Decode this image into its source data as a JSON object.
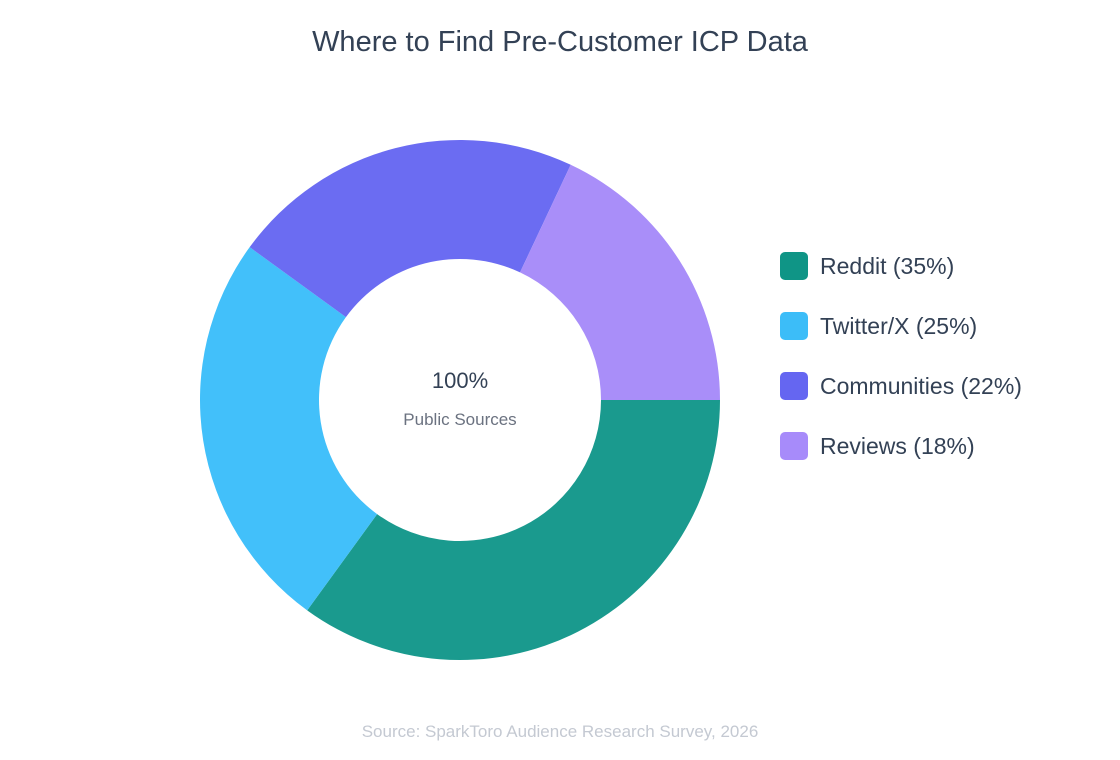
{
  "chart_data": {
    "type": "pie",
    "title": "Where to Find Pre-Customer ICP Data",
    "categories": [
      "Reddit",
      "Twitter/X",
      "Communities",
      "Reviews"
    ],
    "values": [
      35,
      25,
      22,
      18
    ],
    "unit": "%",
    "colors": [
      "#1a9a8e",
      "#42c0fa",
      "#6b6cf2",
      "#a98ef9"
    ],
    "legend_colors": [
      "#0f9586",
      "#3cbdf8",
      "#6566f1",
      "#a78bfa"
    ],
    "center": {
      "value": "100%",
      "label": "Public Sources"
    },
    "legend": {
      "placement": "right",
      "labels": [
        "Reddit (35%)",
        "Twitter/X (25%)",
        "Communities (22%)",
        "Reviews (18%)"
      ]
    },
    "source": "Source: SparkToro Audience Research Survey, 2026"
  }
}
